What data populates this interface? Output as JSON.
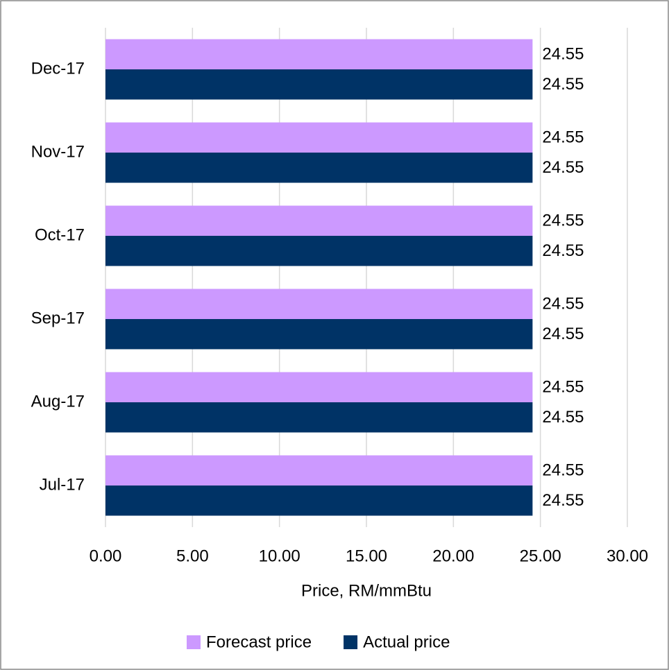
{
  "chart_data": {
    "type": "hbar",
    "categories": [
      "Jul-17",
      "Aug-17",
      "Sep-17",
      "Oct-17",
      "Nov-17",
      "Dec-17"
    ],
    "series": [
      {
        "name": "Forecast price",
        "color": "#cc99ff",
        "label_color": "#c55a11",
        "values": [
          24.55,
          24.55,
          24.55,
          24.55,
          24.55,
          24.55
        ]
      },
      {
        "name": "Actual price",
        "color": "#003366",
        "label_color": "#44546a",
        "values": [
          24.55,
          24.55,
          24.55,
          24.55,
          24.55,
          24.55
        ]
      }
    ],
    "xlabel": "Price, RM/mmBtu",
    "xlim": [
      0,
      30
    ],
    "xticks": [
      {
        "value": 0,
        "label": "0.00"
      },
      {
        "value": 5,
        "label": "5.00"
      },
      {
        "value": 10,
        "label": "10.00"
      },
      {
        "value": 15,
        "label": "15.00"
      },
      {
        "value": 20,
        "label": "20.00"
      },
      {
        "value": 25,
        "label": "25.00"
      },
      {
        "value": 30,
        "label": "30.00"
      }
    ],
    "grid": true,
    "legend": "bottom"
  }
}
